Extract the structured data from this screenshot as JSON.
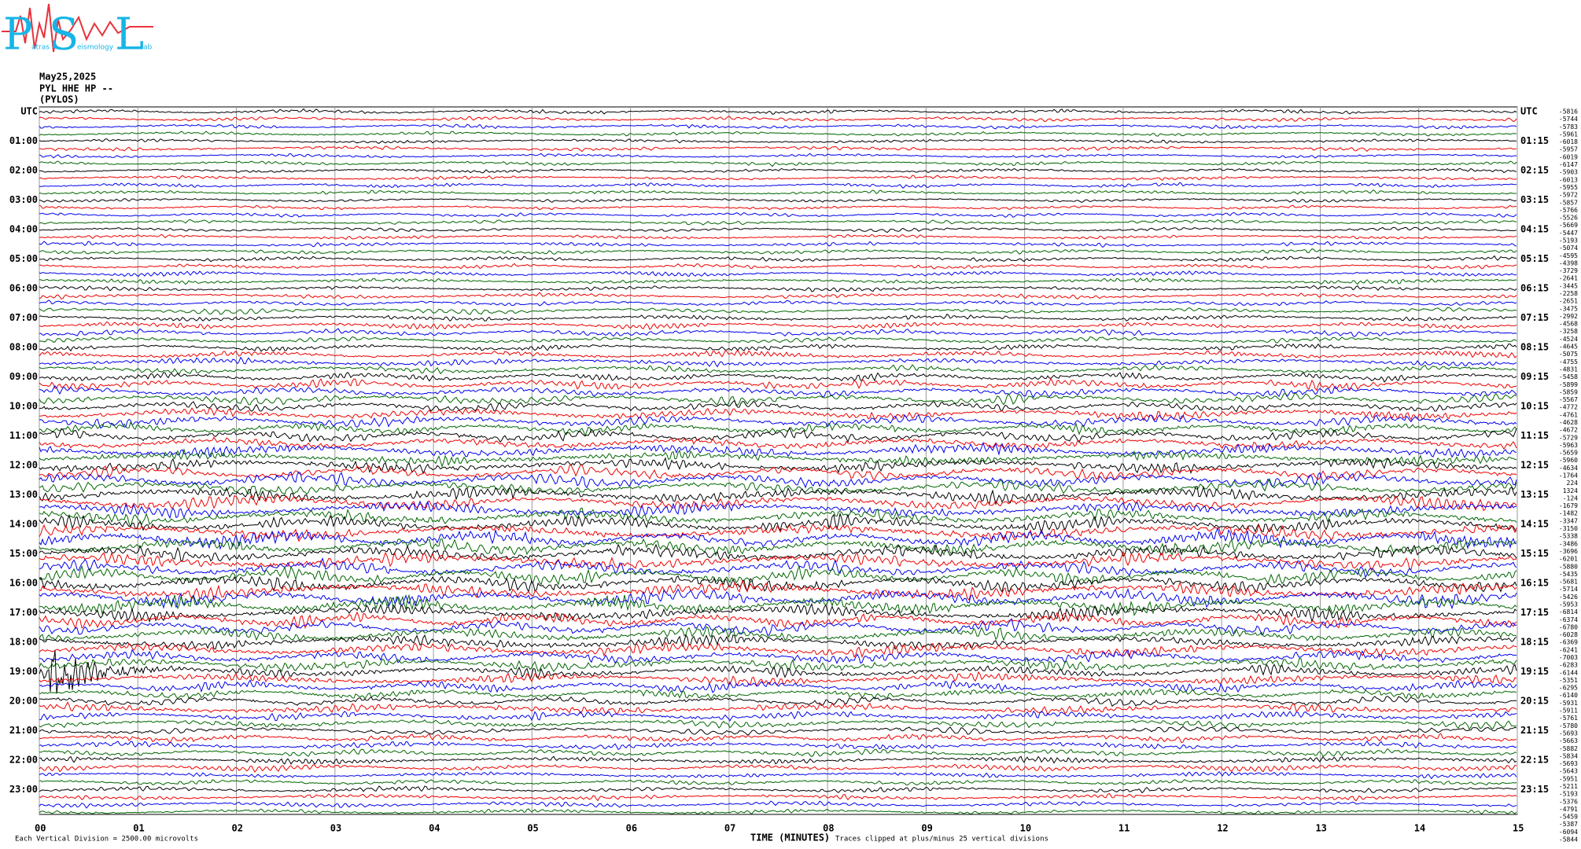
{
  "logo": {
    "letters": [
      "P",
      "S",
      "L"
    ],
    "words": [
      "atras",
      "eismology",
      "ab"
    ]
  },
  "header": {
    "date": "May25,2025",
    "station": "PYL HHE HP --",
    "location": "(PYLOS)"
  },
  "left_labels": [
    "UTC",
    "01:00",
    "02:00",
    "03:00",
    "04:00",
    "05:00",
    "06:00",
    "07:00",
    "08:00",
    "09:00",
    "10:00",
    "11:00",
    "12:00",
    "13:00",
    "14:00",
    "15:00",
    "16:00",
    "17:00",
    "18:00",
    "19:00",
    "20:00",
    "21:00",
    "22:00",
    "23:00"
  ],
  "right_labels": [
    "UTC",
    "01:15",
    "02:15",
    "03:15",
    "04:15",
    "05:15",
    "06:15",
    "07:15",
    "08:15",
    "09:15",
    "10:15",
    "11:15",
    "12:15",
    "13:15",
    "14:15",
    "15:15",
    "16:15",
    "17:15",
    "18:15",
    "19:15",
    "20:15",
    "21:15",
    "22:15",
    "23:15"
  ],
  "x_ticks": [
    "00",
    "01",
    "02",
    "03",
    "04",
    "05",
    "06",
    "07",
    "08",
    "09",
    "10",
    "11",
    "12",
    "13",
    "14",
    "15"
  ],
  "x_label": "TIME (MINUTES)",
  "footer": {
    "scale": "Each Vertical Division = 2500.00 microvolts",
    "clip": "Traces clipped at plus/minus 25 vertical divisions"
  },
  "trace_offsets": [
    -5816,
    -5744,
    -5783,
    -5961,
    -6018,
    -5957,
    -6019,
    -6147,
    -5903,
    -6013,
    -5955,
    -5972,
    -5857,
    -5766,
    -5526,
    -5669,
    -5447,
    -5193,
    -5074,
    -4595,
    -4398,
    -3729,
    -2641,
    -3445,
    -2258,
    -2651,
    -3475,
    -2992,
    -4568,
    -3258,
    -4524,
    -4645,
    -5075,
    -4755,
    -4831,
    -5458,
    -5899,
    -5859,
    -5567,
    -4772,
    -4761,
    -4628,
    -4672,
    -5729,
    -5963,
    -5659,
    -5960,
    -4634,
    -1764,
    224,
    1324,
    -124,
    -1679,
    -1482,
    -3347,
    -3150,
    -5338,
    -3486,
    -3696,
    -6201,
    -5880,
    -5435,
    -5681,
    -5714,
    -5426,
    -5953,
    -6814,
    -6374,
    -6780,
    -6028,
    -6369,
    -6241,
    -7003,
    -6283,
    -6144,
    -5351,
    -6295,
    -6140,
    -5931,
    -5911,
    -5761,
    -5780,
    -5693,
    -5663,
    -5882,
    -5834,
    -5693,
    -5643,
    -5951,
    -5211,
    -5193,
    -5376,
    -4791,
    -5459,
    -5387,
    -6094,
    -5844
  ]
}
